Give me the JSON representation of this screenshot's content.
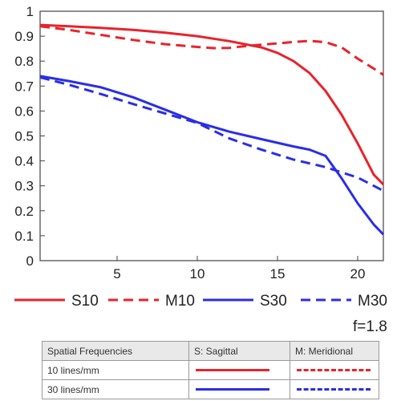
{
  "chart_data": {
    "type": "line",
    "title": "",
    "xlabel": "",
    "ylabel": "",
    "xlim": [
      0.2,
      21.6
    ],
    "ylim": [
      0,
      1
    ],
    "xticks": [
      5,
      10,
      15,
      20
    ],
    "yticks": [
      0,
      0.1,
      0.2,
      0.3,
      0.4,
      0.5,
      0.6,
      0.7,
      0.8,
      0.9,
      1
    ],
    "grid": false,
    "legend_position": "bottom",
    "annotation": "f=1.8",
    "series": [
      {
        "name": "S10",
        "color": "#e8232b",
        "style": "solid",
        "x": [
          0.2,
          2,
          4,
          6,
          8,
          10,
          12,
          14,
          15,
          16,
          17,
          18,
          19,
          20,
          21,
          21.6
        ],
        "y": [
          0.945,
          0.94,
          0.933,
          0.925,
          0.914,
          0.9,
          0.88,
          0.855,
          0.833,
          0.8,
          0.752,
          0.68,
          0.585,
          0.47,
          0.345,
          0.305
        ]
      },
      {
        "name": "M10",
        "color": "#e8232b",
        "style": "dashed",
        "x": [
          0.2,
          2,
          4,
          6,
          8,
          10,
          11,
          12,
          13,
          14,
          15,
          16,
          17,
          18,
          19,
          20,
          21,
          21.6
        ],
        "y": [
          0.94,
          0.925,
          0.905,
          0.885,
          0.868,
          0.857,
          0.852,
          0.853,
          0.86,
          0.866,
          0.871,
          0.877,
          0.881,
          0.876,
          0.855,
          0.81,
          0.77,
          0.745
        ]
      },
      {
        "name": "S30",
        "color": "#2a2ee6",
        "style": "solid",
        "x": [
          0.2,
          2,
          4,
          6,
          8,
          10,
          12,
          14,
          16,
          17,
          18,
          19,
          20,
          21,
          21.6
        ],
        "y": [
          0.74,
          0.72,
          0.695,
          0.655,
          0.605,
          0.555,
          0.517,
          0.487,
          0.458,
          0.445,
          0.42,
          0.33,
          0.23,
          0.145,
          0.105
        ]
      },
      {
        "name": "M30",
        "color": "#2a2ee6",
        "style": "dashed",
        "x": [
          0.2,
          2,
          4,
          6,
          8,
          10,
          12,
          14,
          16,
          18,
          20,
          21,
          21.6
        ],
        "y": [
          0.735,
          0.705,
          0.668,
          0.628,
          0.59,
          0.552,
          0.49,
          0.445,
          0.405,
          0.375,
          0.333,
          0.3,
          0.28
        ]
      }
    ]
  },
  "table": {
    "headers": [
      "Spatial Frequencies",
      "S: Sagittal",
      "M: Meridional"
    ],
    "rows": [
      {
        "label": "10 lines/mm",
        "color": "#e8232b"
      },
      {
        "label": "30 lines/mm",
        "color": "#2a2ee6"
      }
    ]
  }
}
